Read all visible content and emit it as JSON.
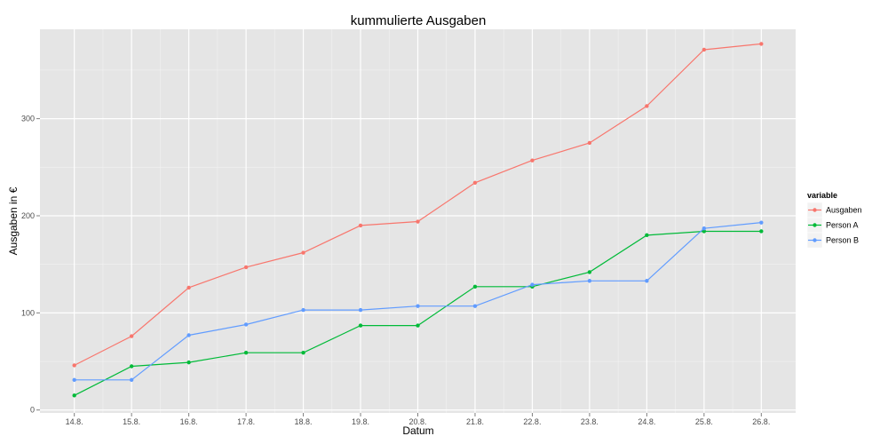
{
  "chart_data": {
    "type": "line",
    "title": "kummulierte Ausgaben",
    "xlabel": "Datum",
    "ylabel": "Ausgaben in €",
    "categories": [
      "14.8.",
      "15.8.",
      "16.8.",
      "17.8.",
      "18.8.",
      "19.8.",
      "20.8.",
      "21.8.",
      "22.8.",
      "23.8.",
      "24.8.",
      "25.8.",
      "26.8."
    ],
    "ylim": [
      -3,
      392
    ],
    "yticks": [
      0,
      100,
      200,
      300
    ],
    "grid": true,
    "legend": {
      "title": "variable",
      "position": "right"
    },
    "series": [
      {
        "name": "Ausgaben",
        "color": "#F8766D",
        "values": [
          46,
          76,
          126,
          147,
          162,
          190,
          194,
          234,
          257,
          275,
          313,
          371,
          377
        ]
      },
      {
        "name": "Person A",
        "color": "#00BA38",
        "values": [
          15,
          45,
          49,
          59,
          59,
          87,
          87,
          127,
          127,
          142,
          180,
          184,
          184
        ]
      },
      {
        "name": "Person B",
        "color": "#619CFF",
        "values": [
          31,
          31,
          77,
          88,
          103,
          103,
          107,
          107,
          129,
          133,
          133,
          187,
          193
        ]
      }
    ]
  }
}
